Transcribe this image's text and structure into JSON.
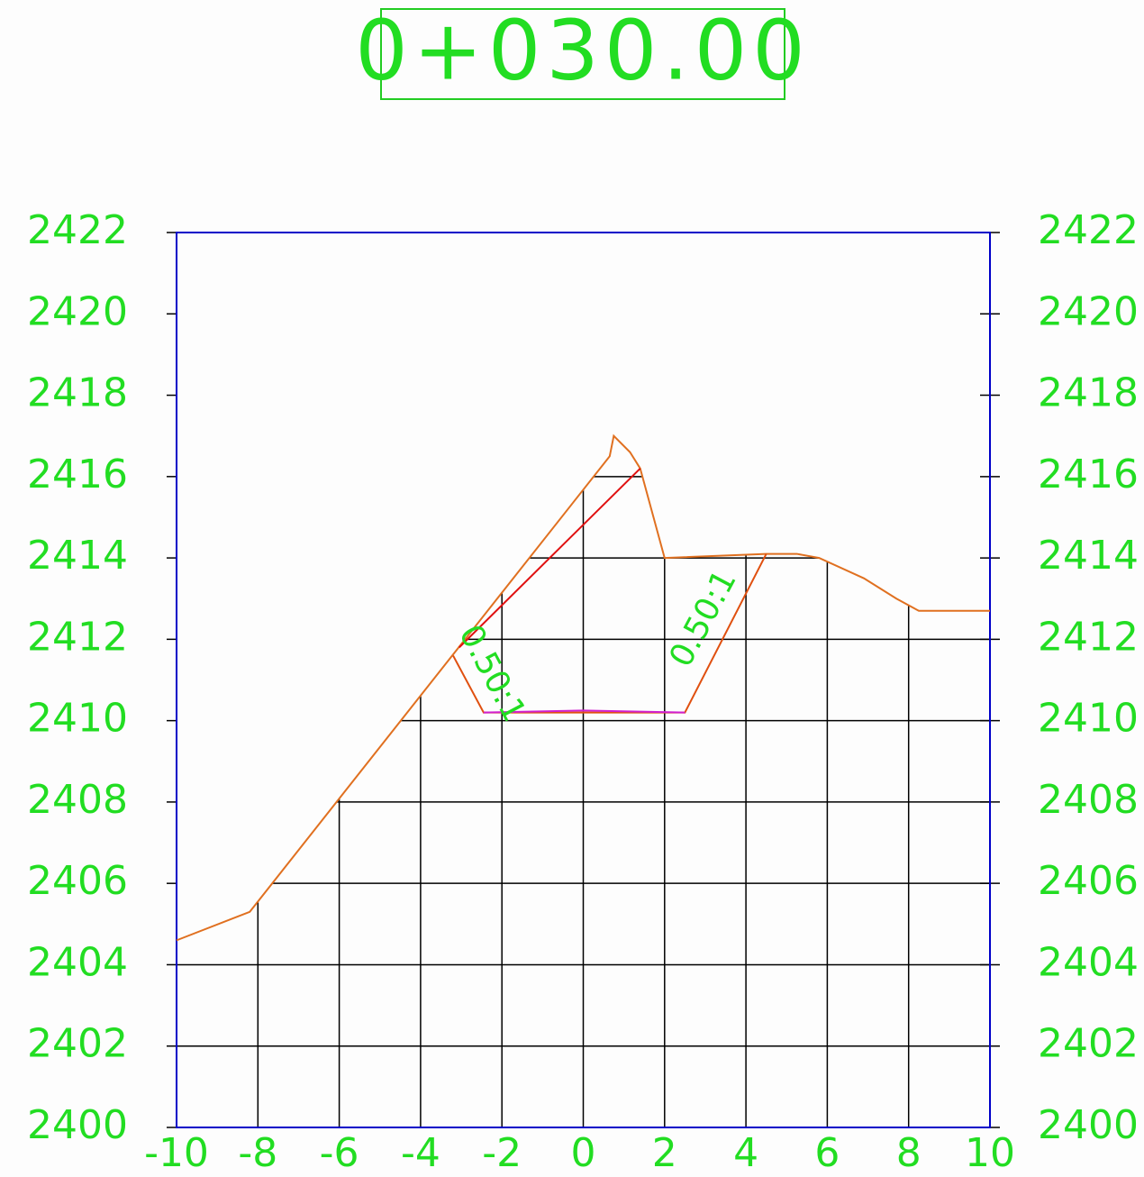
{
  "chart_data": {
    "type": "line",
    "title": "0+030.00",
    "xlim": [
      -10,
      10
    ],
    "ylim": [
      2400,
      2422
    ],
    "xticks": [
      -10,
      -8,
      -6,
      -4,
      -2,
      0,
      2,
      4,
      6,
      8,
      10
    ],
    "yticks": [
      2400,
      2402,
      2404,
      2406,
      2408,
      2410,
      2412,
      2414,
      2416,
      2418,
      2420,
      2422
    ],
    "grid": true,
    "series": [
      {
        "color": "#e07020",
        "x": [
          -10,
          -8.2,
          0.65,
          0.75,
          1.15,
          1.4,
          2.0,
          4.5,
          5.25,
          5.8,
          6.9,
          7.7,
          8.25,
          10
        ],
        "values": [
          2404.6,
          2405.3,
          2416.5,
          2417.0,
          2416.6,
          2416.2,
          2414.0,
          2414.1,
          2414.1,
          2414.0,
          2413.5,
          2413.0,
          2412.7,
          2412.7
        ]
      },
      {
        "color": "#e05010",
        "x": [
          -3.2,
          -2.45,
          2.5,
          4.5
        ],
        "values": [
          2411.6,
          2410.2,
          2410.2,
          2414.1
        ]
      },
      {
        "color": "#e01010",
        "x": [
          -3.05,
          1.4
        ],
        "values": [
          2411.8,
          2416.2
        ]
      },
      {
        "color": "#d020d0",
        "x": [
          -2.45,
          0,
          2.5
        ],
        "values": [
          2410.2,
          2410.25,
          2410.2
        ]
      }
    ],
    "annotations": [
      "0.50:1",
      "0.50:1"
    ]
  }
}
